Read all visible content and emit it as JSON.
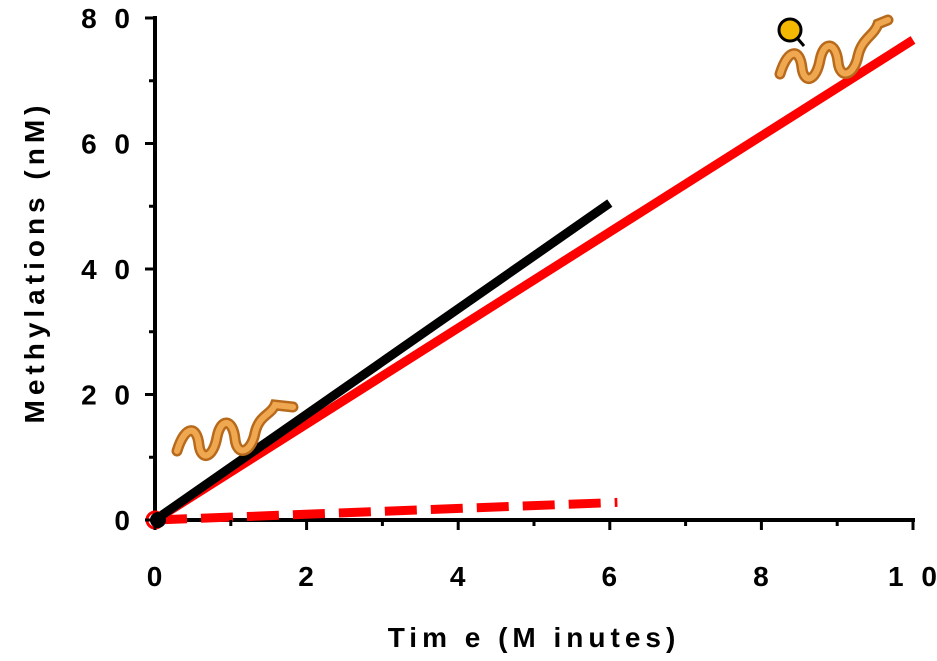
{
  "chart_data": {
    "type": "line",
    "xlabel": "Tim e (M inutes)",
    "ylabel": "Methylations (nM)",
    "xlim": [
      0,
      10
    ],
    "ylim": [
      0,
      80
    ],
    "x_ticks": [
      {
        "value": 0,
        "label": "0"
      },
      {
        "value": 2,
        "label": "2"
      },
      {
        "value": 4,
        "label": "4"
      },
      {
        "value": 6,
        "label": "6"
      },
      {
        "value": 8,
        "label": "8"
      },
      {
        "value": 10,
        "label": "1 0"
      }
    ],
    "y_ticks": [
      {
        "value": 0,
        "label": "0"
      },
      {
        "value": 20,
        "label": "2 0"
      },
      {
        "value": 40,
        "label": "4 0"
      },
      {
        "value": 60,
        "label": "6 0"
      },
      {
        "value": 80,
        "label": "8 0"
      }
    ],
    "series": [
      {
        "color": "#000000",
        "style": "solid",
        "x": [
          0,
          6
        ],
        "y": [
          0,
          50.5
        ]
      },
      {
        "color": "#ff0000",
        "style": "solid",
        "x": [
          0,
          10
        ],
        "y": [
          0,
          76.5
        ]
      },
      {
        "color": "#ff0000",
        "style": "dashed",
        "x": [
          0,
          6.1
        ],
        "y": [
          0,
          2.8
        ]
      }
    ],
    "grid": false,
    "legend": "none",
    "annotations": [
      {
        "name": "helix-icon-unmodified",
        "color": "#e8a04c",
        "near": "low-left"
      },
      {
        "name": "helix-icon-modified",
        "color": "#e8a04c",
        "marker_color": "#f5b800",
        "near": "top-right"
      }
    ]
  }
}
